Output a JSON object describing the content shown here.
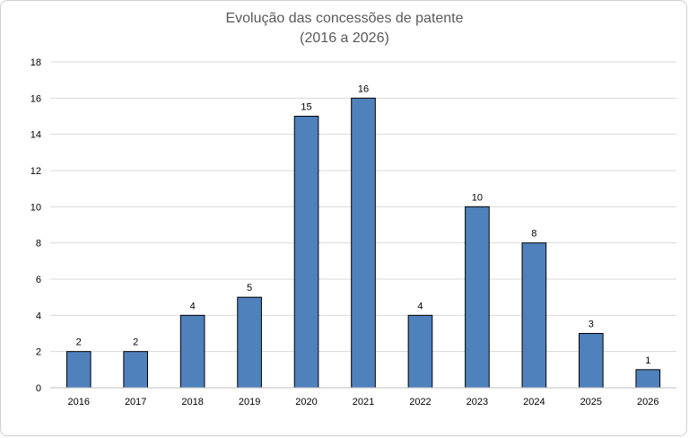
{
  "chart_data": {
    "type": "bar",
    "title_line1": "Evolução das concessões  de patente",
    "title_line2": "(2016 a 2026)",
    "xlabel": "",
    "ylabel": "",
    "categories": [
      "2016",
      "2017",
      "2018",
      "2019",
      "2020",
      "2021",
      "2022",
      "2023",
      "2024",
      "2025",
      "2026"
    ],
    "values": [
      2,
      2,
      4,
      5,
      15,
      16,
      4,
      10,
      8,
      3,
      1
    ],
    "ylim": [
      0,
      18
    ],
    "yticks": [
      "0",
      "2",
      "4",
      "6",
      "8",
      "10",
      "12",
      "14",
      "16",
      "18"
    ],
    "grid": true,
    "legend": "none",
    "bar_color": "#4f81bd",
    "grid_color": "#d9d9d9"
  }
}
